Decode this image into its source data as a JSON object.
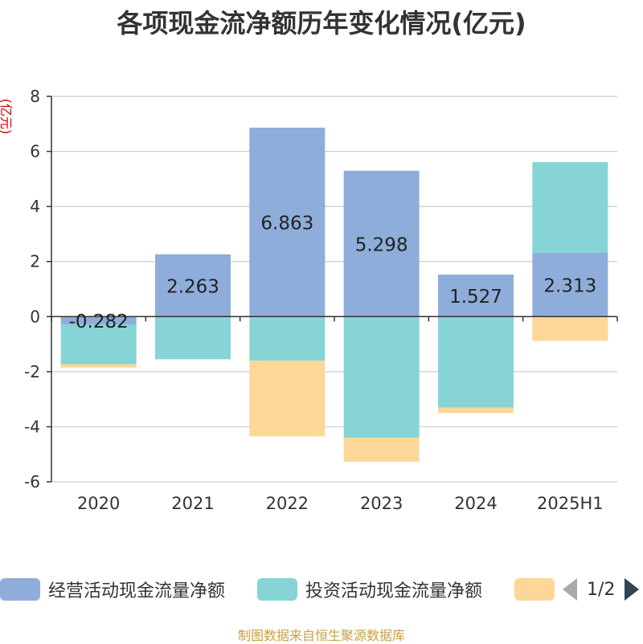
{
  "chart_data": {
    "type": "bar",
    "stacked": true,
    "title": "各项现金流净额历年变化情况(亿元)",
    "ylabel": "(亿元)",
    "xlabel": "",
    "categories": [
      "2020",
      "2021",
      "2022",
      "2023",
      "2024",
      "2025H1"
    ],
    "ylim": [
      -6,
      8
    ],
    "yticks": [
      -6,
      -4,
      -2,
      0,
      2,
      4,
      6,
      8
    ],
    "grid": true,
    "series": [
      {
        "name": "经营活动现金流量净额",
        "color": "#8eadda",
        "values": [
          -0.282,
          2.263,
          6.863,
          5.298,
          1.527,
          2.313
        ],
        "labels": [
          "-0.282",
          "2.263",
          "6.863",
          "5.298",
          "1.527",
          "2.313"
        ]
      },
      {
        "name": "投资活动现金流量净额",
        "color": "#86d4d6",
        "values": [
          -1.45,
          -1.55,
          -1.6,
          -4.4,
          -3.3,
          3.3
        ]
      },
      {
        "color": "#fdd797",
        "values": [
          -0.12,
          0,
          -2.75,
          -0.87,
          -0.2,
          -0.88
        ]
      }
    ]
  },
  "legend": {
    "item1": "经营活动现金流量净额",
    "item2": "投资活动现金流量净额",
    "pager": "1/2"
  },
  "footer": "制图数据来自恒生聚源数据库"
}
